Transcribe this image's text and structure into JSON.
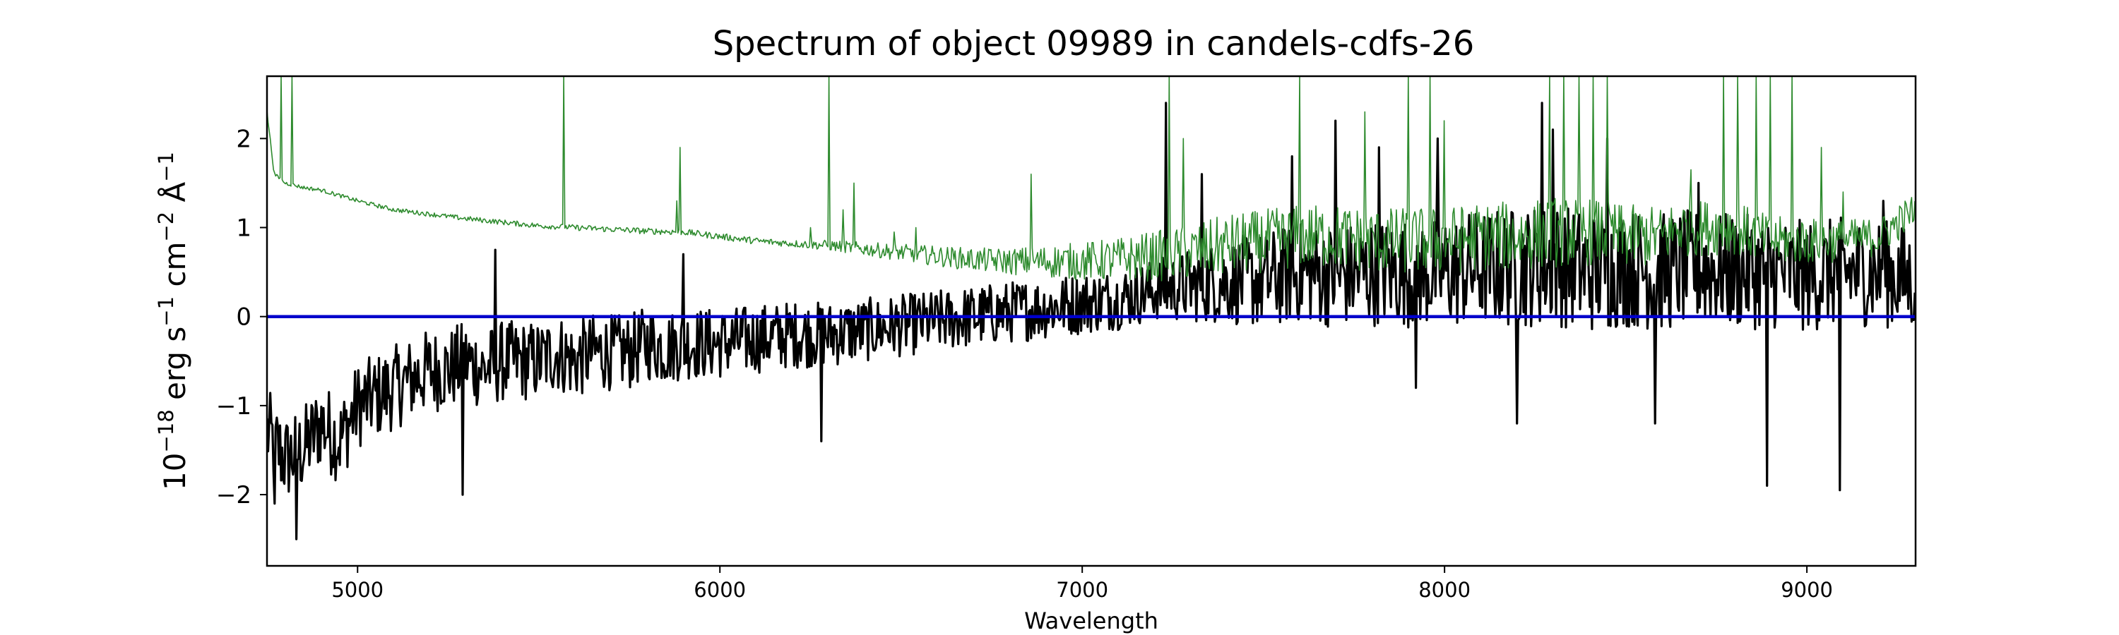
{
  "chart_data": {
    "type": "line",
    "title": "Spectrum of object 09989 in candels-cdfs-26",
    "xlabel": "Wavelength",
    "ylabel_parts": [
      "10",
      "−18",
      " erg s",
      "−1",
      " cm",
      "−2",
      " Å",
      "−1"
    ],
    "xlim": [
      4750,
      9300
    ],
    "ylim": [
      -2.8,
      2.7
    ],
    "xticks": [
      5000,
      6000,
      7000,
      8000,
      9000
    ],
    "xtick_labels": [
      "5000",
      "6000",
      "7000",
      "8000",
      "9000"
    ],
    "yticks": [
      -2,
      -1,
      0,
      1,
      2
    ],
    "ytick_labels": [
      "−2",
      "−1",
      "0",
      "1",
      "2"
    ],
    "grid": false,
    "legend": "none",
    "series": [
      {
        "role": "flux",
        "color": "#000000",
        "points": [
          [
            4750,
            -1.3
          ],
          [
            4800,
            -1.6
          ],
          [
            4850,
            -1.5
          ],
          [
            4900,
            -1.2
          ],
          [
            4950,
            -1.4
          ],
          [
            5000,
            -1.0
          ],
          [
            5050,
            -0.9
          ],
          [
            5100,
            -0.8
          ],
          [
            5150,
            -0.7
          ],
          [
            5200,
            -0.6
          ],
          [
            5250,
            -0.6
          ],
          [
            5300,
            -0.5
          ],
          [
            5350,
            -0.6
          ],
          [
            5400,
            -0.5
          ],
          [
            5450,
            -0.5
          ],
          [
            5500,
            -0.5
          ],
          [
            5550,
            -0.4
          ],
          [
            5600,
            -0.5
          ],
          [
            5650,
            -0.4
          ],
          [
            5700,
            -0.4
          ],
          [
            5750,
            -0.4
          ],
          [
            5800,
            -0.3
          ],
          [
            5850,
            -0.35
          ],
          [
            5900,
            -0.3
          ],
          [
            5950,
            -0.3
          ],
          [
            6000,
            -0.3
          ],
          [
            6100,
            -0.25
          ],
          [
            6200,
            -0.2
          ],
          [
            6300,
            -0.2
          ],
          [
            6400,
            -0.15
          ],
          [
            6500,
            -0.1
          ],
          [
            6600,
            -0.05
          ],
          [
            6700,
            0.0
          ],
          [
            6800,
            0.05
          ],
          [
            6900,
            0.1
          ],
          [
            7000,
            0.15
          ],
          [
            7100,
            0.2
          ],
          [
            7200,
            0.3
          ],
          [
            7300,
            0.35
          ],
          [
            7400,
            0.4
          ],
          [
            7500,
            0.4
          ],
          [
            7600,
            0.5
          ],
          [
            7700,
            0.45
          ],
          [
            7800,
            0.5
          ],
          [
            7900,
            0.5
          ],
          [
            8000,
            0.5
          ],
          [
            8100,
            0.55
          ],
          [
            8200,
            0.55
          ],
          [
            8300,
            0.6
          ],
          [
            8400,
            0.5
          ],
          [
            8500,
            0.55
          ],
          [
            8600,
            0.5
          ],
          [
            8700,
            0.55
          ],
          [
            8800,
            0.5
          ],
          [
            8900,
            0.5
          ],
          [
            9000,
            0.45
          ],
          [
            9100,
            0.5
          ],
          [
            9200,
            0.5
          ],
          [
            9300,
            0.4
          ]
        ],
        "noise_amplitude": [
          [
            4750,
            0.5
          ],
          [
            5500,
            0.45
          ],
          [
            6500,
            0.35
          ],
          [
            7200,
            0.35
          ],
          [
            7500,
            0.55
          ],
          [
            8300,
            0.7
          ],
          [
            9300,
            0.6
          ]
        ],
        "spikes": [
          [
            4770,
            -2.1
          ],
          [
            4830,
            -2.5
          ],
          [
            5290,
            -2.0
          ],
          [
            5380,
            0.75
          ],
          [
            5900,
            0.7
          ],
          [
            6280,
            -1.4
          ],
          [
            7230,
            2.4
          ],
          [
            7330,
            1.6
          ],
          [
            7580,
            1.8
          ],
          [
            7700,
            2.2
          ],
          [
            7820,
            1.9
          ],
          [
            7980,
            2.0
          ],
          [
            8270,
            2.4
          ],
          [
            8300,
            2.1
          ],
          [
            8450,
            2.0
          ],
          [
            8700,
            1.5
          ],
          [
            8890,
            -1.9
          ],
          [
            9090,
            -1.95
          ],
          [
            9210,
            1.3
          ],
          [
            7920,
            -0.8
          ],
          [
            8200,
            -1.2
          ],
          [
            8580,
            -1.2
          ]
        ]
      },
      {
        "role": "error",
        "color": "#2e8b2e",
        "points": [
          [
            4750,
            2.3
          ],
          [
            4770,
            1.6
          ],
          [
            4800,
            1.5
          ],
          [
            4850,
            1.45
          ],
          [
            4900,
            1.42
          ],
          [
            5000,
            1.3
          ],
          [
            5100,
            1.2
          ],
          [
            5200,
            1.15
          ],
          [
            5300,
            1.1
          ],
          [
            5400,
            1.06
          ],
          [
            5500,
            1.02
          ],
          [
            5600,
            1.0
          ],
          [
            5700,
            0.98
          ],
          [
            5800,
            0.96
          ],
          [
            5900,
            0.95
          ],
          [
            6000,
            0.9
          ],
          [
            6100,
            0.85
          ],
          [
            6200,
            0.82
          ],
          [
            6300,
            0.8
          ],
          [
            6400,
            0.76
          ],
          [
            6500,
            0.72
          ],
          [
            6600,
            0.68
          ],
          [
            6700,
            0.64
          ],
          [
            6800,
            0.62
          ],
          [
            6900,
            0.62
          ],
          [
            7000,
            0.62
          ],
          [
            7100,
            0.64
          ],
          [
            7200,
            0.68
          ],
          [
            7300,
            0.72
          ],
          [
            7400,
            0.8
          ],
          [
            7500,
            0.85
          ],
          [
            7600,
            0.9
          ],
          [
            7700,
            0.9
          ],
          [
            7800,
            0.85
          ],
          [
            7900,
            0.85
          ],
          [
            8000,
            0.85
          ],
          [
            8100,
            0.9
          ],
          [
            8200,
            0.9
          ],
          [
            8300,
            0.95
          ],
          [
            8400,
            0.95
          ],
          [
            8500,
            0.9
          ],
          [
            8600,
            0.9
          ],
          [
            8650,
            1.0
          ],
          [
            8700,
            1.0
          ],
          [
            8800,
            1.0
          ],
          [
            8900,
            0.85
          ],
          [
            9000,
            0.85
          ],
          [
            9100,
            0.85
          ],
          [
            9200,
            0.9
          ],
          [
            9300,
            1.2
          ]
        ],
        "noise_amplitude": [
          [
            4750,
            0.02
          ],
          [
            6200,
            0.04
          ],
          [
            6800,
            0.15
          ],
          [
            7400,
            0.35
          ],
          [
            8300,
            0.4
          ],
          [
            9300,
            0.2
          ]
        ],
        "spikes": [
          [
            4790,
            2.7
          ],
          [
            4820,
            2.7
          ],
          [
            5570,
            2.7
          ],
          [
            5890,
            1.9
          ],
          [
            5880,
            1.3
          ],
          [
            6300,
            2.7
          ],
          [
            6370,
            1.5
          ],
          [
            6340,
            1.2
          ],
          [
            6250,
            1.0
          ],
          [
            6480,
            0.95
          ],
          [
            6540,
            1.0
          ],
          [
            6860,
            1.6
          ],
          [
            7240,
            2.7
          ],
          [
            7280,
            2.0
          ],
          [
            7600,
            2.7
          ],
          [
            7780,
            2.3
          ],
          [
            7900,
            2.7
          ],
          [
            7960,
            2.7
          ],
          [
            8000,
            2.2
          ],
          [
            8290,
            2.7
          ],
          [
            8330,
            2.7
          ],
          [
            8370,
            2.7
          ],
          [
            8410,
            2.7
          ],
          [
            8450,
            2.7
          ],
          [
            8680,
            1.65
          ],
          [
            8770,
            2.7
          ],
          [
            8810,
            2.7
          ],
          [
            8860,
            2.7
          ],
          [
            8900,
            2.7
          ],
          [
            8960,
            2.7
          ],
          [
            9040,
            1.9
          ],
          [
            9100,
            1.4
          ]
        ]
      },
      {
        "role": "zero-line",
        "color": "#0000cc",
        "points": [
          [
            4750,
            0
          ],
          [
            9300,
            0
          ]
        ]
      }
    ]
  }
}
